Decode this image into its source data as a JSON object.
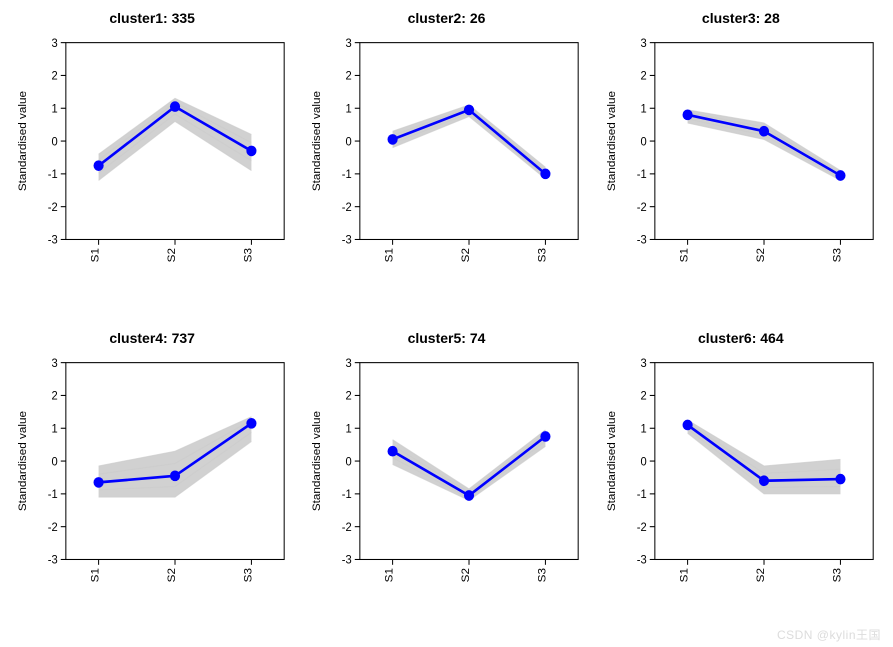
{
  "layout": {
    "rows": 2,
    "cols": 3
  },
  "global": {
    "ylabel": "Standardised value",
    "xticks": [
      "S1",
      "S2",
      "S3"
    ],
    "yticks": [
      -3,
      -2,
      -1,
      0,
      1,
      2,
      3
    ],
    "ylim": [
      -3,
      3
    ],
    "background_color": "#ffffff",
    "box_color": "#000000",
    "gray_color": "#cccccc",
    "line_color": "#0000ff",
    "marker_color": "#0000ff",
    "marker_radius": 5,
    "line_width": 2.5,
    "title_fontsize": 14,
    "tick_fontsize": 11,
    "label_fontsize": 11
  },
  "panels": [
    {
      "title": "cluster1: 335",
      "mean": [
        -0.75,
        1.05,
        -0.3
      ],
      "band_upper": [
        -0.4,
        1.3,
        0.2
      ],
      "band_lower": [
        -1.2,
        0.6,
        -0.9
      ]
    },
    {
      "title": "cluster2: 26",
      "mean": [
        0.05,
        0.95,
        -1.0
      ],
      "band_upper": [
        0.3,
        1.1,
        -0.8
      ],
      "band_lower": [
        -0.2,
        0.75,
        -1.15
      ]
    },
    {
      "title": "cluster3: 28",
      "mean": [
        0.8,
        0.3,
        -1.05
      ],
      "band_upper": [
        0.95,
        0.55,
        -0.9
      ],
      "band_lower": [
        0.55,
        0.05,
        -1.2
      ]
    },
    {
      "title": "cluster4: 737",
      "mean": [
        -0.65,
        -0.45,
        1.15
      ],
      "band_upper": [
        -0.15,
        0.3,
        1.35
      ],
      "band_lower": [
        -1.1,
        -1.1,
        0.6
      ]
    },
    {
      "title": "cluster5: 74",
      "mean": [
        0.3,
        -1.05,
        0.75
      ],
      "band_upper": [
        0.65,
        -0.85,
        0.95
      ],
      "band_lower": [
        -0.1,
        -1.2,
        0.45
      ]
    },
    {
      "title": "cluster6: 464",
      "mean": [
        1.1,
        -0.6,
        -0.55
      ],
      "band_upper": [
        1.25,
        -0.15,
        0.05
      ],
      "band_lower": [
        0.85,
        -1.0,
        -1.0
      ]
    }
  ],
  "watermark": "CSDN @kylin王国"
}
